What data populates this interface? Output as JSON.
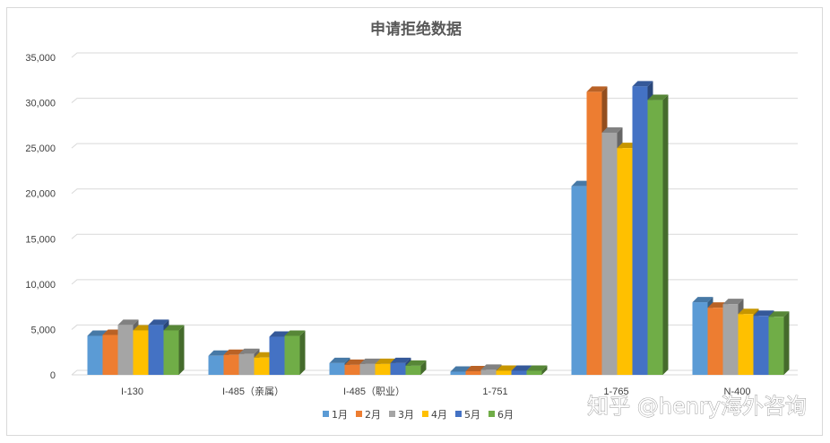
{
  "chart_data": {
    "type": "bar",
    "title": "申请拒绝数据",
    "xlabel": "",
    "ylabel": "",
    "categories": [
      "I-130",
      "I-485（亲属）",
      "I-485（职业）",
      "1-751",
      "1-765",
      "N-400"
    ],
    "series": [
      {
        "name": "1月",
        "color": "#5b9bd5",
        "values": [
          4300,
          2100,
          1300,
          350,
          20800,
          8000
        ]
      },
      {
        "name": "2月",
        "color": "#ed7d31",
        "values": [
          4400,
          2200,
          1100,
          400,
          31200,
          7400
        ]
      },
      {
        "name": "3月",
        "color": "#a5a5a5",
        "values": [
          5500,
          2300,
          1200,
          550,
          26700,
          7800
        ]
      },
      {
        "name": "4月",
        "color": "#ffc000",
        "values": [
          4900,
          1900,
          1200,
          450,
          25000,
          6700
        ]
      },
      {
        "name": "5月",
        "color": "#4472c4",
        "values": [
          5500,
          4200,
          1300,
          450,
          31800,
          6500
        ]
      },
      {
        "name": "6月",
        "color": "#70ad47",
        "values": [
          4900,
          4300,
          1000,
          450,
          30300,
          6400
        ]
      }
    ],
    "ylim": [
      0,
      35000
    ],
    "yticks": [
      "0",
      "5,000",
      "10,000",
      "15,000",
      "20,000",
      "25,000",
      "30,000",
      "35,000"
    ],
    "grid": true,
    "legend_position": "bottom"
  },
  "watermark": "知乎 @henry海外咨询"
}
